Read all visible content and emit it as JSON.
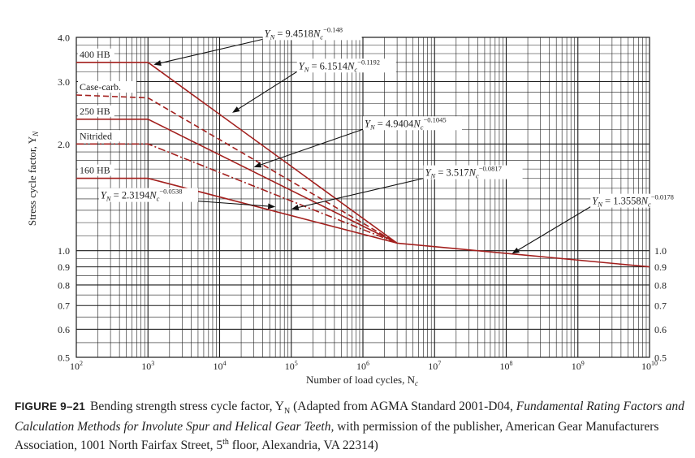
{
  "chart_data": {
    "type": "line",
    "xscale": "log",
    "yscale": "log",
    "xlim": [
      100,
      10000000000
    ],
    "ylim": [
      0.5,
      4.0
    ],
    "xlabel": "Number of load cycles, N",
    "xlabel_sub": "c",
    "ylabel": "Stress cycle factor, Y",
    "ylabel_sub": "N",
    "x_ticks": [
      {
        "value": 100,
        "base": "10",
        "exp": "2"
      },
      {
        "value": 1000,
        "base": "10",
        "exp": "3"
      },
      {
        "value": 10000,
        "base": "10",
        "exp": "4"
      },
      {
        "value": 100000,
        "base": "10",
        "exp": "5"
      },
      {
        "value": 1000000,
        "base": "10",
        "exp": "6"
      },
      {
        "value": 10000000,
        "base": "10",
        "exp": "7"
      },
      {
        "value": 100000000,
        "base": "10",
        "exp": "8"
      },
      {
        "value": 1000000000,
        "base": "10",
        "exp": "9"
      },
      {
        "value": 10000000000,
        "base": "10",
        "exp": "10"
      }
    ],
    "y_ticks_left": [
      {
        "value": 4.0,
        "label": "4.0"
      },
      {
        "value": 3.0,
        "label": "3.0"
      },
      {
        "value": 2.0,
        "label": "2.0"
      },
      {
        "value": 1.0,
        "label": "1.0"
      },
      {
        "value": 0.9,
        "label": "0.9"
      },
      {
        "value": 0.8,
        "label": "0.8"
      },
      {
        "value": 0.7,
        "label": "0.7"
      },
      {
        "value": 0.6,
        "label": "0.6"
      },
      {
        "value": 0.5,
        "label": "0.5"
      }
    ],
    "y_ticks_right": [
      {
        "value": 1.0,
        "label": "1.0"
      },
      {
        "value": 0.9,
        "label": "0.9"
      },
      {
        "value": 0.8,
        "label": "0.8"
      },
      {
        "value": 0.7,
        "label": "0.7"
      },
      {
        "value": 0.6,
        "label": "0.6"
      },
      {
        "value": 0.5,
        "label": "0.5"
      }
    ],
    "y_minor": [
      0.55,
      0.65,
      0.75,
      0.85,
      0.95,
      1.1,
      1.2,
      1.3,
      1.4,
      1.5,
      1.6,
      1.7,
      1.8,
      1.9,
      2.2,
      2.4,
      2.6,
      2.8,
      3.2,
      3.4,
      3.6,
      3.8
    ],
    "grid": true,
    "series": [
      {
        "name": "400 HB",
        "style": "solid",
        "points": [
          [
            100,
            3.4
          ],
          [
            1000,
            3.4
          ],
          [
            3000000,
            1.05
          ]
        ]
      },
      {
        "name": "Case-carb.",
        "style": "dashed",
        "points": [
          [
            100,
            2.75
          ],
          [
            1000,
            2.7
          ],
          [
            3000000,
            1.05
          ]
        ]
      },
      {
        "name": "250 HB",
        "style": "solid",
        "points": [
          [
            100,
            2.35
          ],
          [
            1000,
            2.35
          ],
          [
            3000000,
            1.05
          ]
        ]
      },
      {
        "name": "Nitrided",
        "style": "dashdot",
        "points": [
          [
            100,
            2.0
          ],
          [
            1000,
            2.0
          ],
          [
            3000000,
            1.05
          ]
        ]
      },
      {
        "name": "160 HB",
        "style": "solid",
        "points": [
          [
            100,
            1.6
          ],
          [
            1000,
            1.6
          ],
          [
            3000000,
            1.05
          ]
        ]
      },
      {
        "name": "",
        "style": "solid",
        "points": [
          [
            3000000,
            1.05
          ],
          [
            10000000000,
            0.9
          ]
        ]
      }
    ],
    "annotations": [
      {
        "pre": "Y",
        "sub": "N",
        "mid": " = 9.4518",
        "n": "N",
        "nsub": "c",
        "exp": "−0.148",
        "at": [
          40000,
          3.95
        ],
        "arrow_to": [
          1200,
          3.35
        ]
      },
      {
        "pre": "Y",
        "sub": "N",
        "mid": " = 6.1514",
        "n": "N",
        "nsub": "c",
        "exp": "−0.1192",
        "at": [
          120000,
          3.2
        ],
        "arrow_to": [
          15000,
          2.45
        ]
      },
      {
        "pre": "Y",
        "sub": "N",
        "mid": " = 4.9404",
        "n": "N",
        "nsub": "c",
        "exp": "−0.1045",
        "at": [
          1000000,
          2.2
        ],
        "arrow_to": [
          30000,
          1.72
        ]
      },
      {
        "pre": "Y",
        "sub": "N",
        "mid": " = 3.517",
        "n": "N",
        "nsub": "c",
        "exp": "−0.0817",
        "at": [
          7000000,
          1.6
        ],
        "arrow_to": [
          100000,
          1.31
        ]
      },
      {
        "pre": "Y",
        "sub": "N",
        "mid": " = 2.3194",
        "n": "N",
        "nsub": "c",
        "exp": "−0.0538",
        "at": [
          5000,
          1.38
        ],
        "arrow_to": [
          60000,
          1.33
        ]
      },
      {
        "pre": "Y",
        "sub": "N",
        "mid": " = 1.3558",
        "n": "N",
        "nsub": "c",
        "exp": "−0.0178",
        "at": [
          1500000000,
          1.33
        ],
        "arrow_to": [
          120000000,
          0.98
        ]
      }
    ]
  },
  "caption": {
    "figure_label": "FIGURE 9–21",
    "text_1": "Bending strength stress cycle factor, Y",
    "text_1_sub": "N",
    "text_2": " (Adapted from AGMA Standard 2001-D04, ",
    "title_italic": "Fundamental Rating Factors and Calculation Methods for Involute Spur and Helical Gear Teeth,",
    "text_3": " with permission of the publisher, American Gear Manufacturers Association, 1001 North Fairfax Street, 5",
    "text_3_sup": "th",
    "text_4": " floor, Alexandria, VA 22314)"
  },
  "colors": {
    "curve": "#a3201e",
    "grid": "#1a1a1a",
    "text": "#222222"
  }
}
